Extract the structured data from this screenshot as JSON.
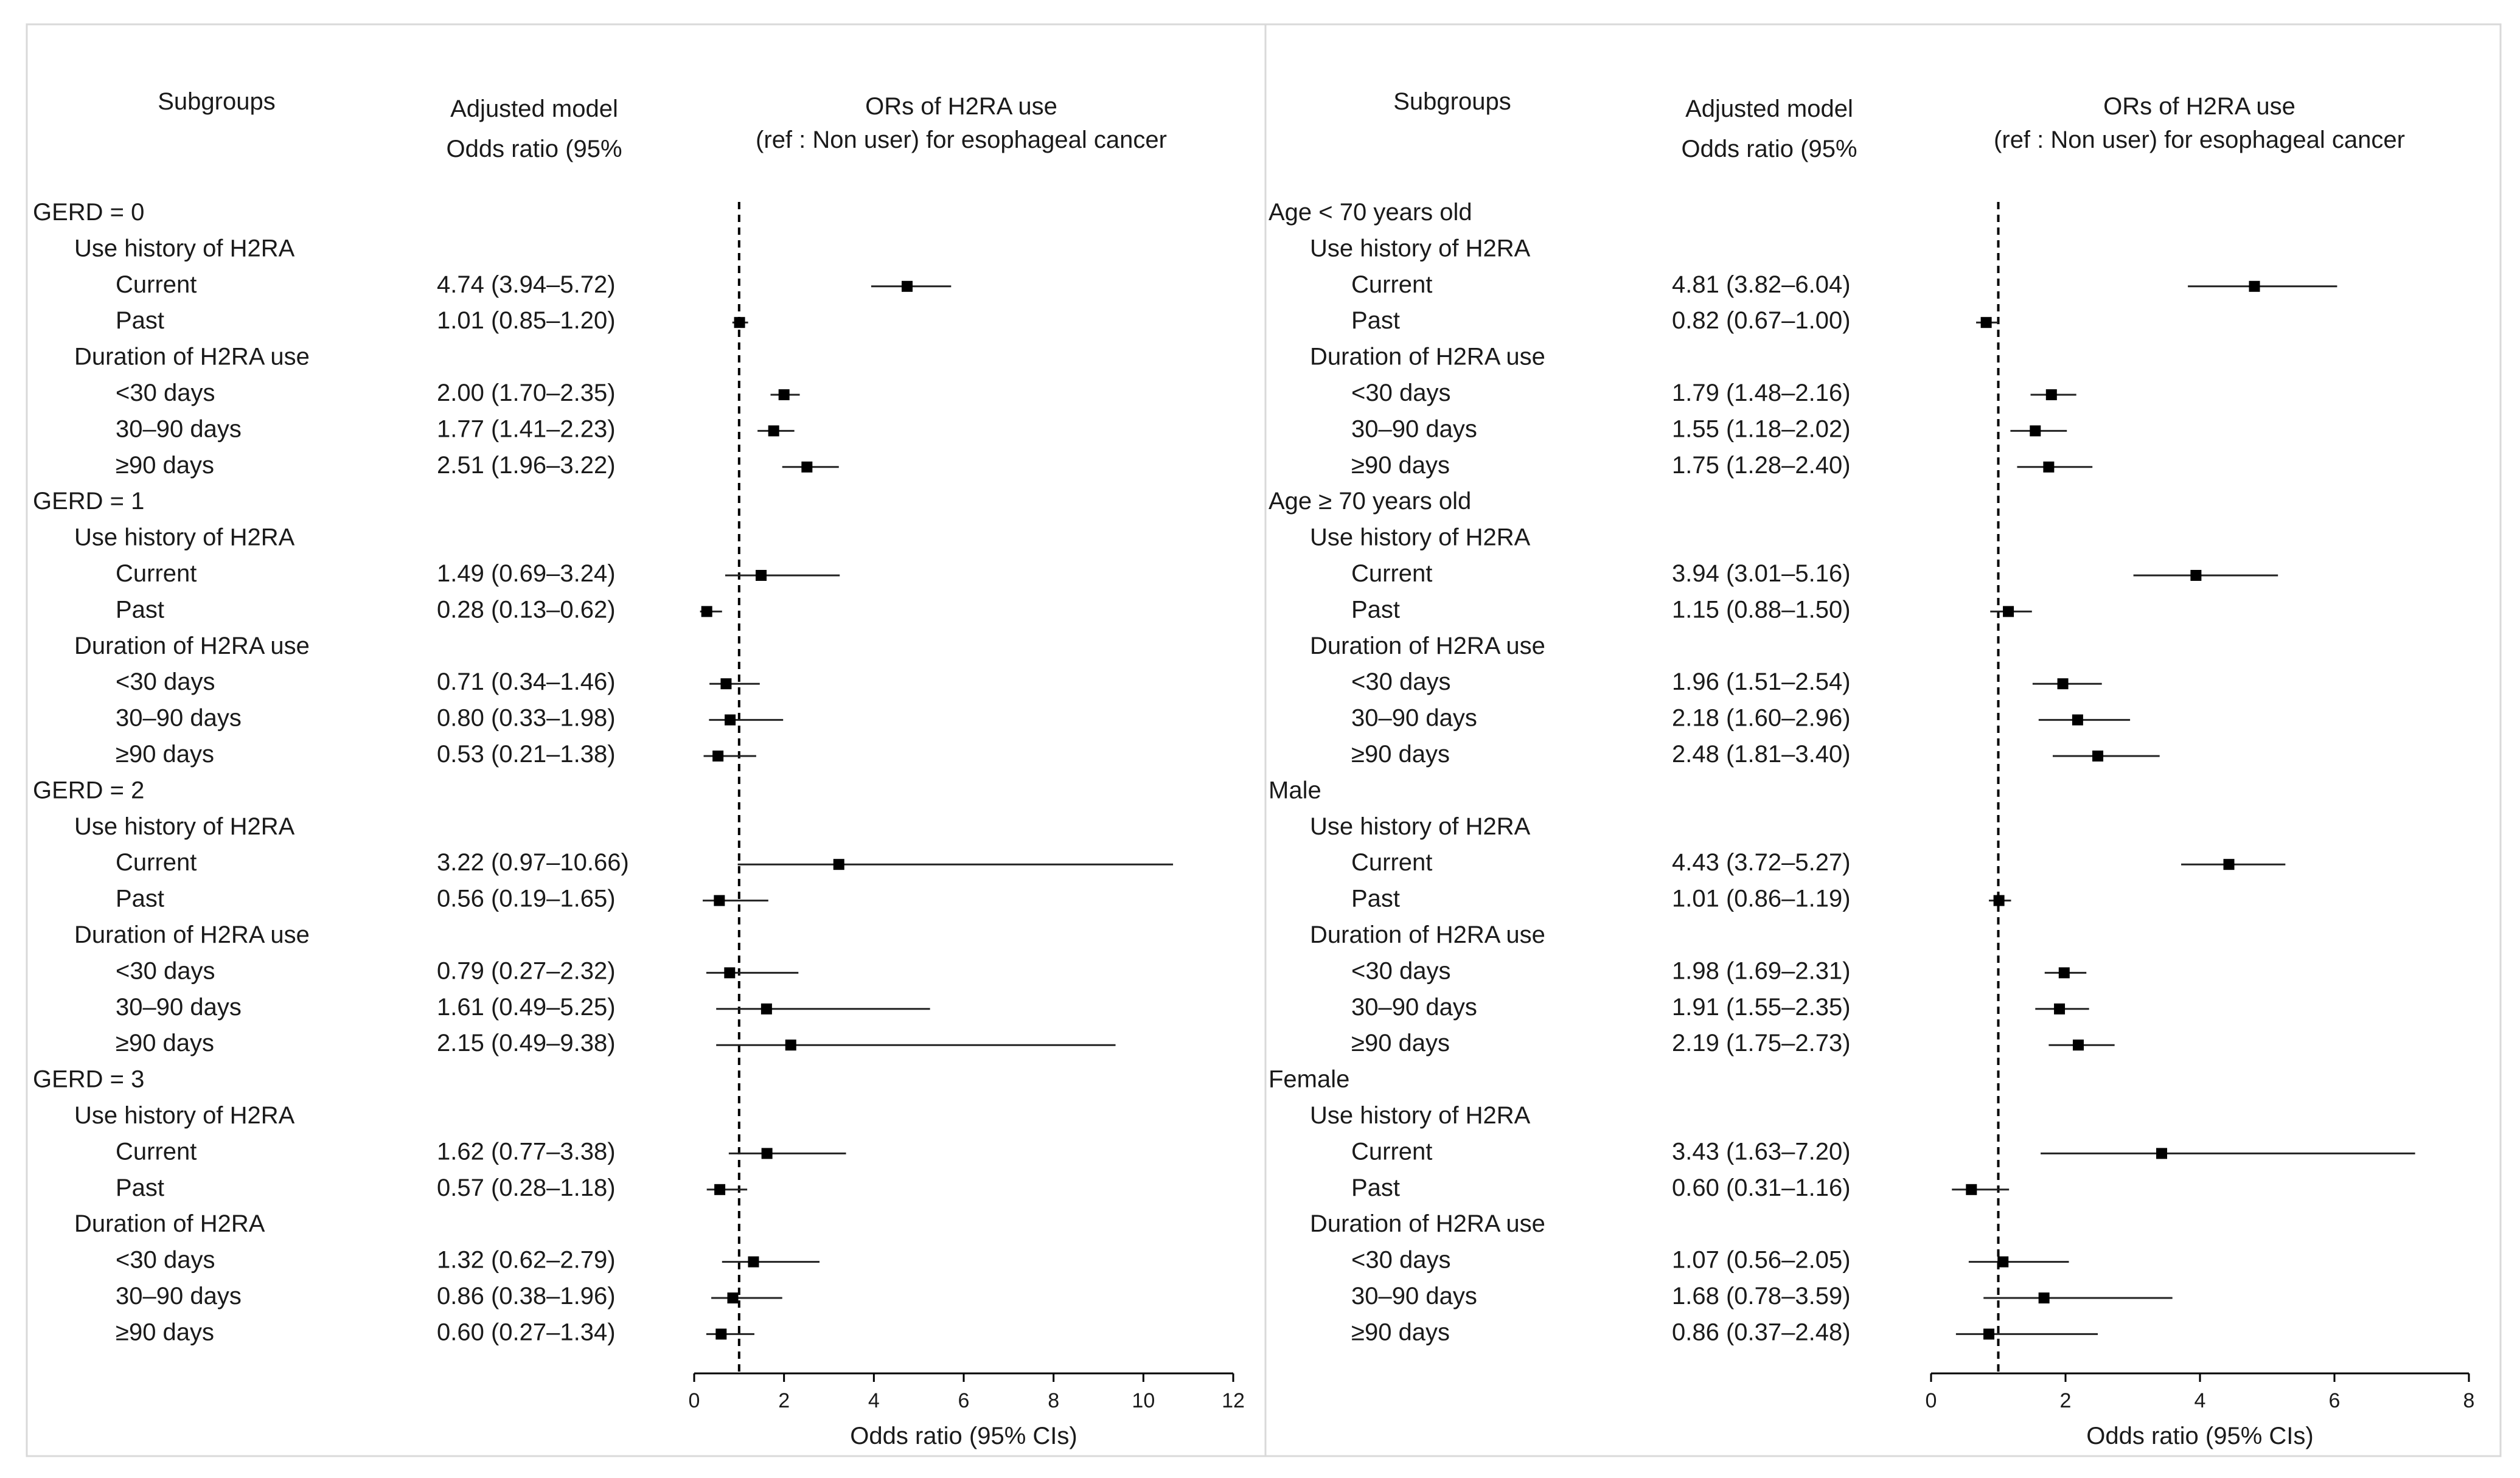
{
  "chart_data": [
    {
      "type": "forest",
      "col_headers": {
        "subgroups": "Subgroups",
        "model_line1": "Adjusted model",
        "model_line2": "Odds ratio (95%",
        "plot_line1": "ORs of H2RA use",
        "plot_line2": "(ref : Non user) for esophageal cancer"
      },
      "xlabel": "Odds ratio (95% CIs)",
      "xlim": [
        0,
        12
      ],
      "xticks": [
        0,
        2,
        4,
        6,
        8,
        10,
        12
      ],
      "reference_line": 1,
      "rows": [
        {
          "label": "GERD = 0",
          "level": 0
        },
        {
          "label": "Use history of H2RA",
          "level": 1
        },
        {
          "label": "Current",
          "level": 2,
          "text": "4.74 (3.94–5.72)",
          "or": 4.74,
          "lo": 3.94,
          "hi": 5.72
        },
        {
          "label": "Past",
          "level": 2,
          "text": "1.01 (0.85–1.20)",
          "or": 1.01,
          "lo": 0.85,
          "hi": 1.2
        },
        {
          "label": "Duration of H2RA use",
          "level": 1
        },
        {
          "label": "<30 days",
          "level": 2,
          "text": "2.00 (1.70–2.35)",
          "or": 2.0,
          "lo": 1.7,
          "hi": 2.35
        },
        {
          "label": "30–90 days",
          "level": 2,
          "text": "1.77 (1.41–2.23)",
          "or": 1.77,
          "lo": 1.41,
          "hi": 2.23
        },
        {
          "label": "≥90 days",
          "level": 2,
          "text": "2.51 (1.96–3.22)",
          "or": 2.51,
          "lo": 1.96,
          "hi": 3.22
        },
        {
          "label": "GERD = 1",
          "level": 0
        },
        {
          "label": "Use history of H2RA",
          "level": 1
        },
        {
          "label": "Current",
          "level": 2,
          "text": "1.49 (0.69–3.24)",
          "or": 1.49,
          "lo": 0.69,
          "hi": 3.24
        },
        {
          "label": "Past",
          "level": 2,
          "text": "0.28 (0.13–0.62)",
          "or": 0.28,
          "lo": 0.13,
          "hi": 0.62
        },
        {
          "label": "Duration of H2RA use",
          "level": 1
        },
        {
          "label": "<30 days",
          "level": 2,
          "text": "0.71 (0.34–1.46)",
          "or": 0.71,
          "lo": 0.34,
          "hi": 1.46
        },
        {
          "label": "30–90 days",
          "level": 2,
          "text": "0.80 (0.33–1.98)",
          "or": 0.8,
          "lo": 0.33,
          "hi": 1.98
        },
        {
          "label": "≥90 days",
          "level": 2,
          "text": "0.53 (0.21–1.38)",
          "or": 0.53,
          "lo": 0.21,
          "hi": 1.38
        },
        {
          "label": "GERD = 2",
          "level": 0
        },
        {
          "label": "Use history of  H2RA",
          "level": 1
        },
        {
          "label": "Current",
          "level": 2,
          "text": "3.22 (0.97–10.66)",
          "or": 3.22,
          "lo": 0.97,
          "hi": 10.66
        },
        {
          "label": "Past",
          "level": 2,
          "text": "0.56 (0.19–1.65)",
          "or": 0.56,
          "lo": 0.19,
          "hi": 1.65
        },
        {
          "label": "Duration of H2RA use",
          "level": 1
        },
        {
          "label": "<30 days",
          "level": 2,
          "text": "0.79 (0.27–2.32)",
          "or": 0.79,
          "lo": 0.27,
          "hi": 2.32
        },
        {
          "label": "30–90 days",
          "level": 2,
          "text": "1.61 (0.49–5.25)",
          "or": 1.61,
          "lo": 0.49,
          "hi": 5.25
        },
        {
          "label": "≥90 days",
          "level": 2,
          "text": "2.15 (0.49–9.38)",
          "or": 2.15,
          "lo": 0.49,
          "hi": 9.38
        },
        {
          "label": "GERD = 3",
          "level": 0
        },
        {
          "label": "Use history of  H2RA",
          "level": 1
        },
        {
          "label": "Current",
          "level": 2,
          "text": "1.62 (0.77–3.38)",
          "or": 1.62,
          "lo": 0.77,
          "hi": 3.38
        },
        {
          "label": "Past",
          "level": 2,
          "text": "0.57 (0.28–1.18)",
          "or": 0.57,
          "lo": 0.28,
          "hi": 1.18
        },
        {
          "label": "Duration of H2RA",
          "level": 1
        },
        {
          "label": "<30 days",
          "level": 2,
          "text": "1.32 (0.62–2.79)",
          "or": 1.32,
          "lo": 0.62,
          "hi": 2.79
        },
        {
          "label": "30–90 days",
          "level": 2,
          "text": "0.86 (0.38–1.96)",
          "or": 0.86,
          "lo": 0.38,
          "hi": 1.96
        },
        {
          "label": "≥90 days",
          "level": 2,
          "text": "0.60 (0.27–1.34)",
          "or": 0.6,
          "lo": 0.27,
          "hi": 1.34
        }
      ]
    },
    {
      "type": "forest",
      "col_headers": {
        "subgroups": "Subgroups",
        "model_line1": "Adjusted model",
        "model_line2": "Odds ratio (95%",
        "plot_line1": "ORs of H2RA use",
        "plot_line2": "(ref : Non user) for esophageal cancer"
      },
      "xlabel": "Odds ratio (95% CIs)",
      "xlim": [
        0,
        8
      ],
      "xticks": [
        0,
        2,
        4,
        6,
        8
      ],
      "reference_line": 1,
      "rows": [
        {
          "label": "Age < 70 years old",
          "level": 0
        },
        {
          "label": "Use history of  H2RA",
          "level": 1
        },
        {
          "label": "Current",
          "level": 2,
          "text": "4.81 (3.82–6.04)",
          "or": 4.81,
          "lo": 3.82,
          "hi": 6.04
        },
        {
          "label": "Past",
          "level": 2,
          "text": "0.82 (0.67–1.00)",
          "or": 0.82,
          "lo": 0.67,
          "hi": 1.0
        },
        {
          "label": "Duration of H2RA use",
          "level": 1
        },
        {
          "label": "<30 days",
          "level": 2,
          "text": "1.79 (1.48–2.16)",
          "or": 1.79,
          "lo": 1.48,
          "hi": 2.16
        },
        {
          "label": "30–90 days",
          "level": 2,
          "text": "1.55 (1.18–2.02)",
          "or": 1.55,
          "lo": 1.18,
          "hi": 2.02
        },
        {
          "label": "≥90 days",
          "level": 2,
          "text": "1.75 (1.28–2.40)",
          "or": 1.75,
          "lo": 1.28,
          "hi": 2.4
        },
        {
          "label": "Age ≥ 70 years old",
          "level": 0
        },
        {
          "label": "Use history of  H2RA",
          "level": 1
        },
        {
          "label": "Current",
          "level": 2,
          "text": "3.94 (3.01–5.16)",
          "or": 3.94,
          "lo": 3.01,
          "hi": 5.16
        },
        {
          "label": "Past",
          "level": 2,
          "text": "1.15 (0.88–1.50)",
          "or": 1.15,
          "lo": 0.88,
          "hi": 1.5
        },
        {
          "label": "Duration of H2RA use",
          "level": 1
        },
        {
          "label": "<30 days",
          "level": 2,
          "text": "1.96 (1.51–2.54)",
          "or": 1.96,
          "lo": 1.51,
          "hi": 2.54
        },
        {
          "label": "30–90 days",
          "level": 2,
          "text": "2.18 (1.60–2.96)",
          "or": 2.18,
          "lo": 1.6,
          "hi": 2.96
        },
        {
          "label": "≥90 days",
          "level": 2,
          "text": "2.48 (1.81–3.40)",
          "or": 2.48,
          "lo": 1.81,
          "hi": 3.4
        },
        {
          "label": "Male",
          "level": 0
        },
        {
          "label": "Use history of  H2RA",
          "level": 1
        },
        {
          "label": "Current",
          "level": 2,
          "text": "4.43 (3.72–5.27)",
          "or": 4.43,
          "lo": 3.72,
          "hi": 5.27
        },
        {
          "label": "Past",
          "level": 2,
          "text": "1.01 (0.86–1.19)",
          "or": 1.01,
          "lo": 0.86,
          "hi": 1.19
        },
        {
          "label": "Duration of H2RA use",
          "level": 1
        },
        {
          "label": "<30 days",
          "level": 2,
          "text": "1.98 (1.69–2.31)",
          "or": 1.98,
          "lo": 1.69,
          "hi": 2.31
        },
        {
          "label": "30–90 days",
          "level": 2,
          "text": "1.91 (1.55–2.35)",
          "or": 1.91,
          "lo": 1.55,
          "hi": 2.35
        },
        {
          "label": "≥90 days",
          "level": 2,
          "text": "2.19 (1.75–2.73)",
          "or": 2.19,
          "lo": 1.75,
          "hi": 2.73
        },
        {
          "label": "Female",
          "level": 0
        },
        {
          "label": "Use history of  H2RA",
          "level": 1
        },
        {
          "label": "Current",
          "level": 2,
          "text": "3.43 (1.63–7.20)",
          "or": 3.43,
          "lo": 1.63,
          "hi": 7.2
        },
        {
          "label": "Past",
          "level": 2,
          "text": "0.60 (0.31–1.16)",
          "or": 0.6,
          "lo": 0.31,
          "hi": 1.16
        },
        {
          "label": "Duration of H2RA use",
          "level": 1
        },
        {
          "label": "<30 days",
          "level": 2,
          "text": "1.07 (0.56–2.05)",
          "or": 1.07,
          "lo": 0.56,
          "hi": 2.05
        },
        {
          "label": "30–90 days",
          "level": 2,
          "text": "1.68 (0.78–3.59)",
          "or": 1.68,
          "lo": 0.78,
          "hi": 3.59
        },
        {
          "label": "≥90 days",
          "level": 2,
          "text": "0.86 (0.37–2.48)",
          "or": 0.86,
          "lo": 0.37,
          "hi": 2.48
        }
      ]
    }
  ]
}
